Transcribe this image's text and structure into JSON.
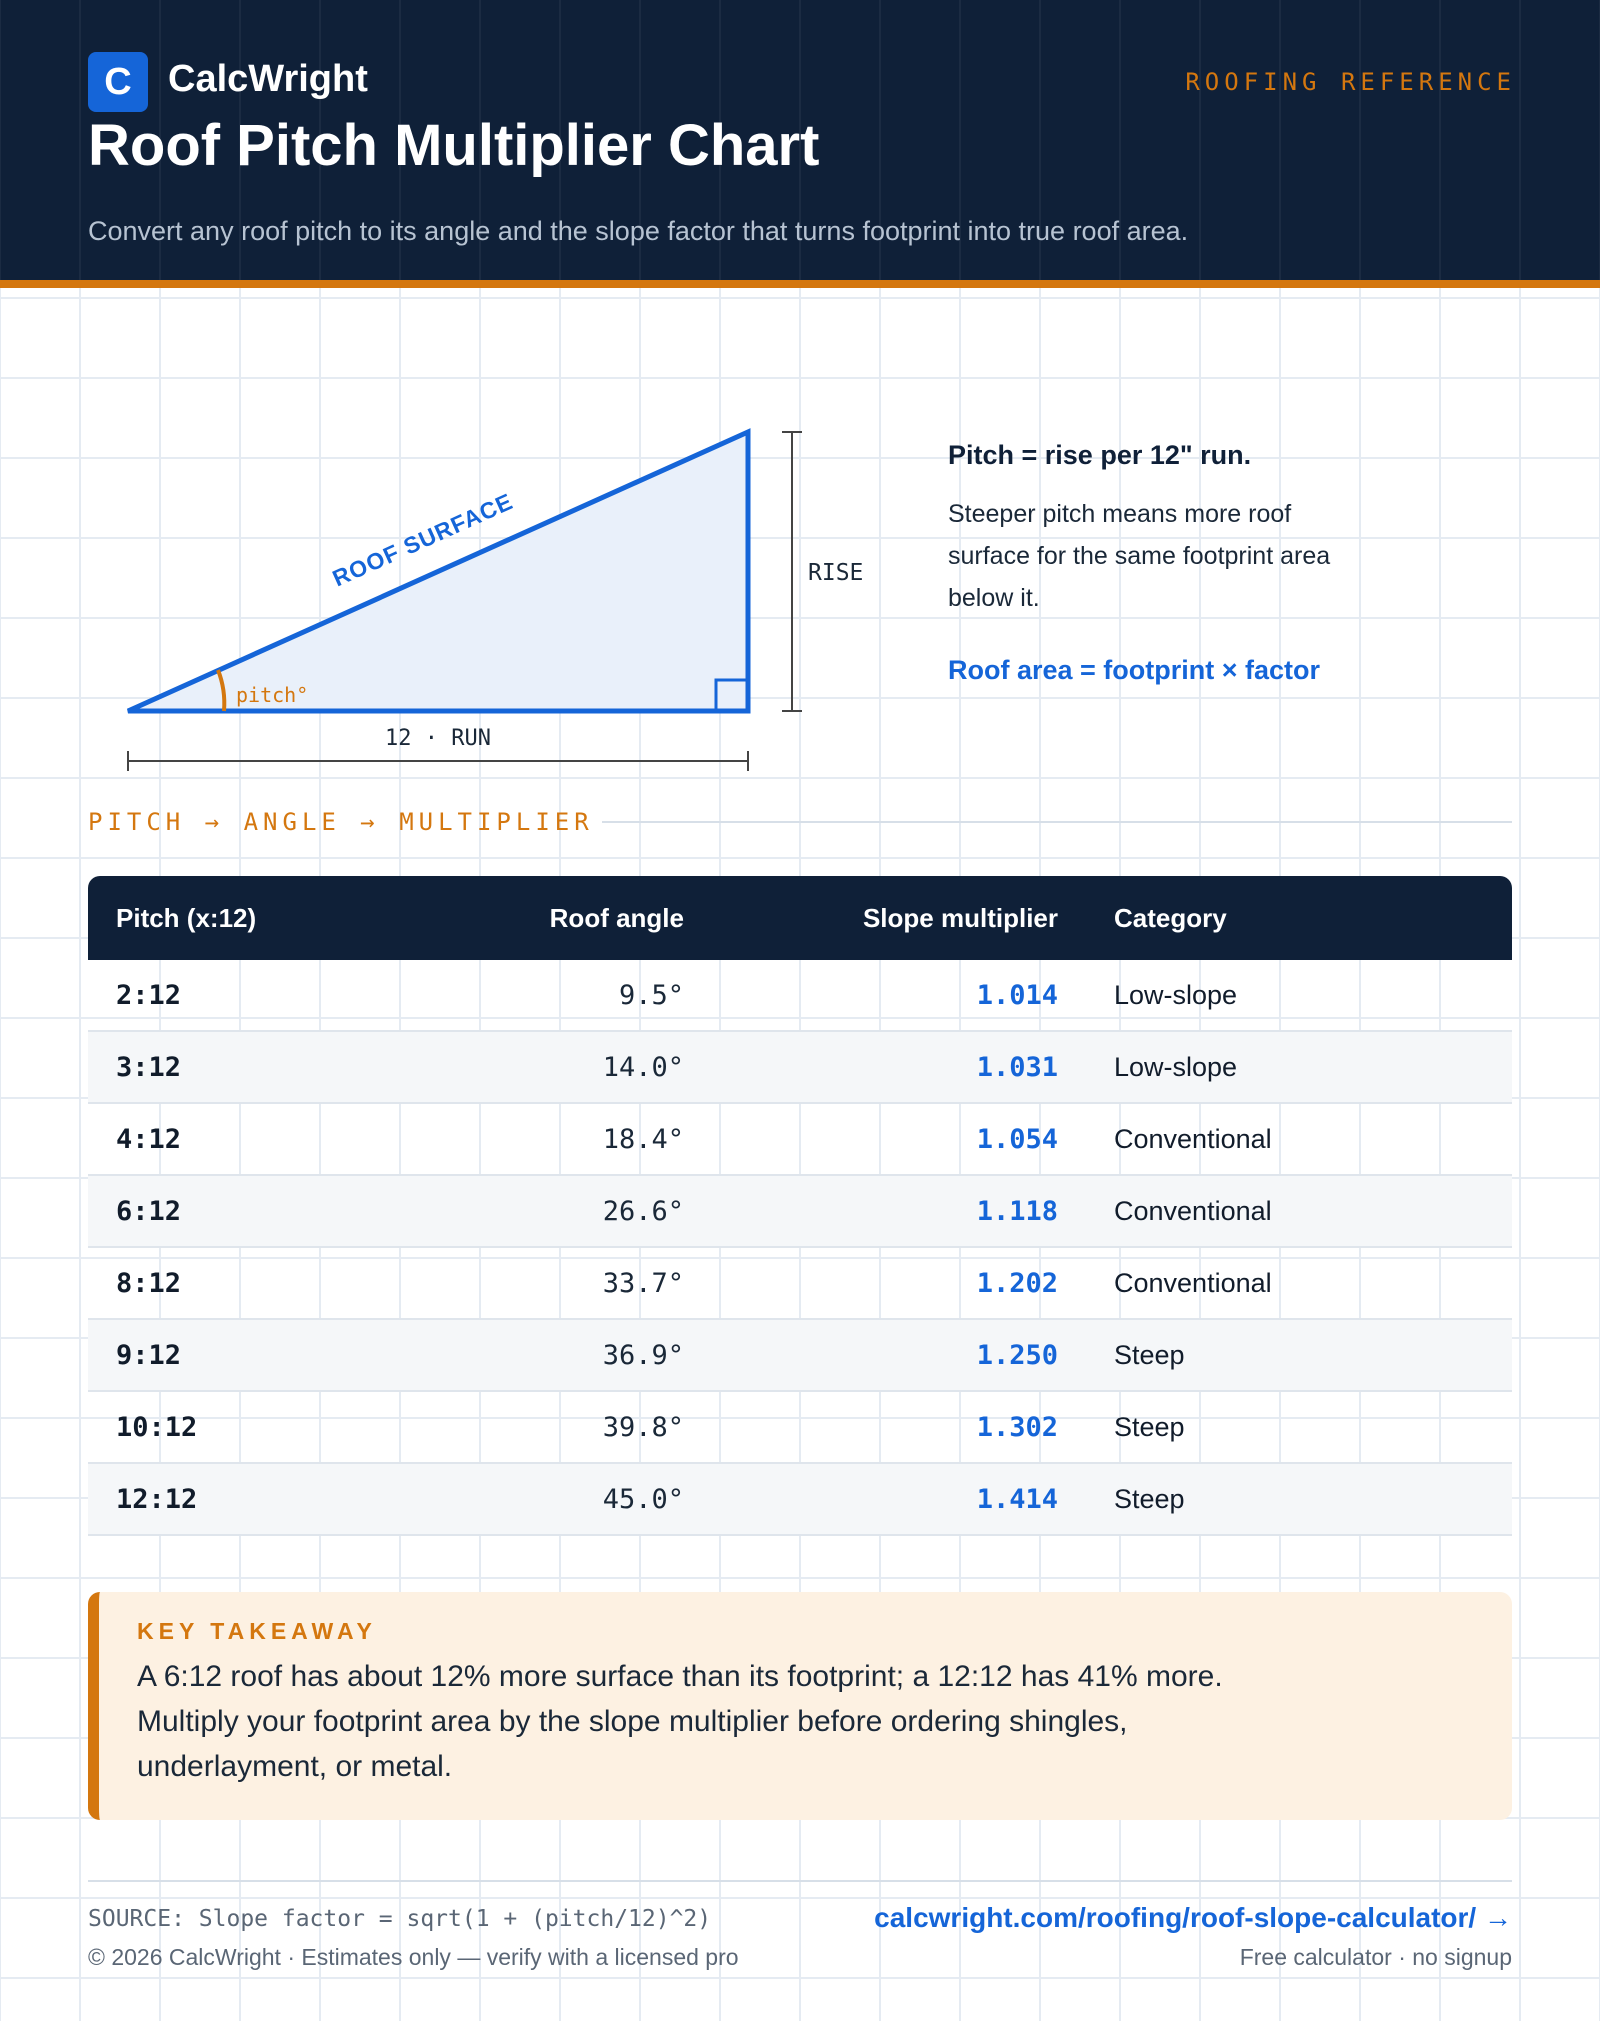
{
  "header": {
    "logo_letter": "C",
    "brand": "CalcWright",
    "tag": "ROOFING REFERENCE",
    "title": "Roof Pitch Multiplier Chart",
    "subtitle": "Convert any roof pitch to its angle and the slope factor that turns footprint into true roof area."
  },
  "diagram": {
    "surface_label": "ROOF SURFACE",
    "rise_label": "RISE",
    "run_label": "12 · RUN",
    "angle_label": "pitch°"
  },
  "explain": {
    "lead": "Pitch = rise per 12\" run.",
    "body": "Steeper pitch means more roof surface for the same footprint area below it.",
    "formula": "Roof area = footprint × factor"
  },
  "section_label": "PITCH → ANGLE → MULTIPLIER",
  "table": {
    "headers": [
      "Pitch (x:12)",
      "Roof angle",
      "Slope multiplier",
      "Category"
    ],
    "rows": [
      {
        "pitch": "2:12",
        "angle": "9.5°",
        "multiplier": "1.014",
        "category": "Low-slope"
      },
      {
        "pitch": "3:12",
        "angle": "14.0°",
        "multiplier": "1.031",
        "category": "Low-slope"
      },
      {
        "pitch": "4:12",
        "angle": "18.4°",
        "multiplier": "1.054",
        "category": "Conventional"
      },
      {
        "pitch": "6:12",
        "angle": "26.6°",
        "multiplier": "1.118",
        "category": "Conventional"
      },
      {
        "pitch": "8:12",
        "angle": "33.7°",
        "multiplier": "1.202",
        "category": "Conventional"
      },
      {
        "pitch": "9:12",
        "angle": "36.9°",
        "multiplier": "1.250",
        "category": "Steep"
      },
      {
        "pitch": "10:12",
        "angle": "39.8°",
        "multiplier": "1.302",
        "category": "Steep"
      },
      {
        "pitch": "12:12",
        "angle": "45.0°",
        "multiplier": "1.414",
        "category": "Steep"
      }
    ]
  },
  "takeaway": {
    "label": "KEY TAKEAWAY",
    "text": "A 6:12 roof has about 12% more surface than its footprint; a 12:12 has 41% more. Multiply your footprint area by the slope multiplier before ordering shingles, underlayment, or metal."
  },
  "footer": {
    "source": "SOURCE: Slope factor = sqrt(1 + (pitch/12)^2)",
    "copyright": "© 2026 CalcWright · Estimates only — verify with a licensed pro",
    "link": "calcwright.com/roofing/roof-slope-calculator/ →",
    "note": "Free calculator · no signup"
  },
  "colors": {
    "navy": "#0f2038",
    "accent_orange": "#d4770f",
    "accent_blue": "#1565d8",
    "takeaway_bg": "#fdf1e2"
  }
}
